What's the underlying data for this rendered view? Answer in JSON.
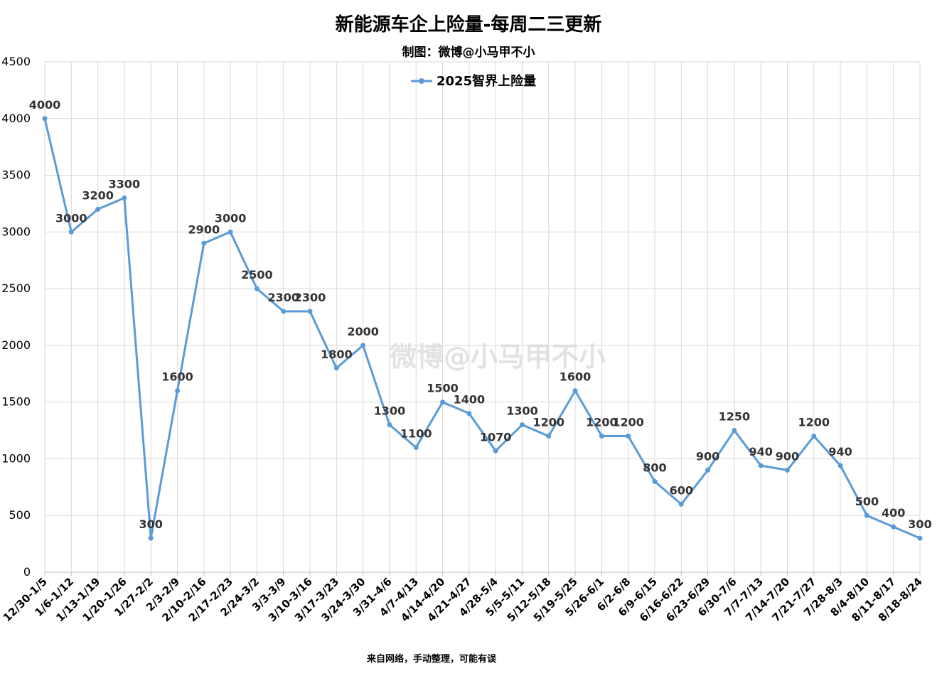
{
  "footer": "来自网络，手动整理，可能有误",
  "watermark": "微博@小马甲不小",
  "chart_data": {
    "type": "line",
    "title": "新能源车企上险量-每周二三更新",
    "subtitle": "制图：微博@小马甲不小",
    "xlabel": "",
    "ylabel": "",
    "ylim": [
      0,
      4500
    ],
    "yticks": [
      0,
      500,
      1000,
      1500,
      2000,
      2500,
      3000,
      3500,
      4000,
      4500
    ],
    "grid": true,
    "legend_position": "top-center",
    "categories": [
      "12/30-1/5",
      "1/6-1/12",
      "1/13-1/19",
      "1/20-1/26",
      "1/27-2/2",
      "2/3-2/9",
      "2/10-2/16",
      "2/17-2/23",
      "2/24-3/2",
      "3/3-3/9",
      "3/10-3/16",
      "3/17-3/23",
      "3/24-3/30",
      "3/31-4/6",
      "4/7-4/13",
      "4/14-4/20",
      "4/21-4/27",
      "4/28-5/4",
      "5/5-5/11",
      "5/12-5/18",
      "5/19-5/25",
      "5/26-6/1",
      "6/2-6/8",
      "6/9-6/15",
      "6/16-6/22",
      "6/23-6/29",
      "6/30-7/6",
      "7/7-7/13",
      "7/14-7/20",
      "7/21-7/27",
      "7/28-8/3",
      "8/4-8/10",
      "8/11-8/17",
      "8/18-8/24"
    ],
    "series": [
      {
        "name": "2025智界上险量",
        "color": "#5b9bd5",
        "values": [
          4000,
          3000,
          3200,
          3300,
          300,
          1600,
          2900,
          3000,
          2500,
          2300,
          2300,
          1800,
          2000,
          1300,
          1100,
          1500,
          1400,
          1070,
          1300,
          1200,
          1600,
          1200,
          1200,
          800,
          600,
          900,
          1250,
          940,
          900,
          1200,
          940,
          500,
          400,
          300
        ]
      }
    ]
  }
}
